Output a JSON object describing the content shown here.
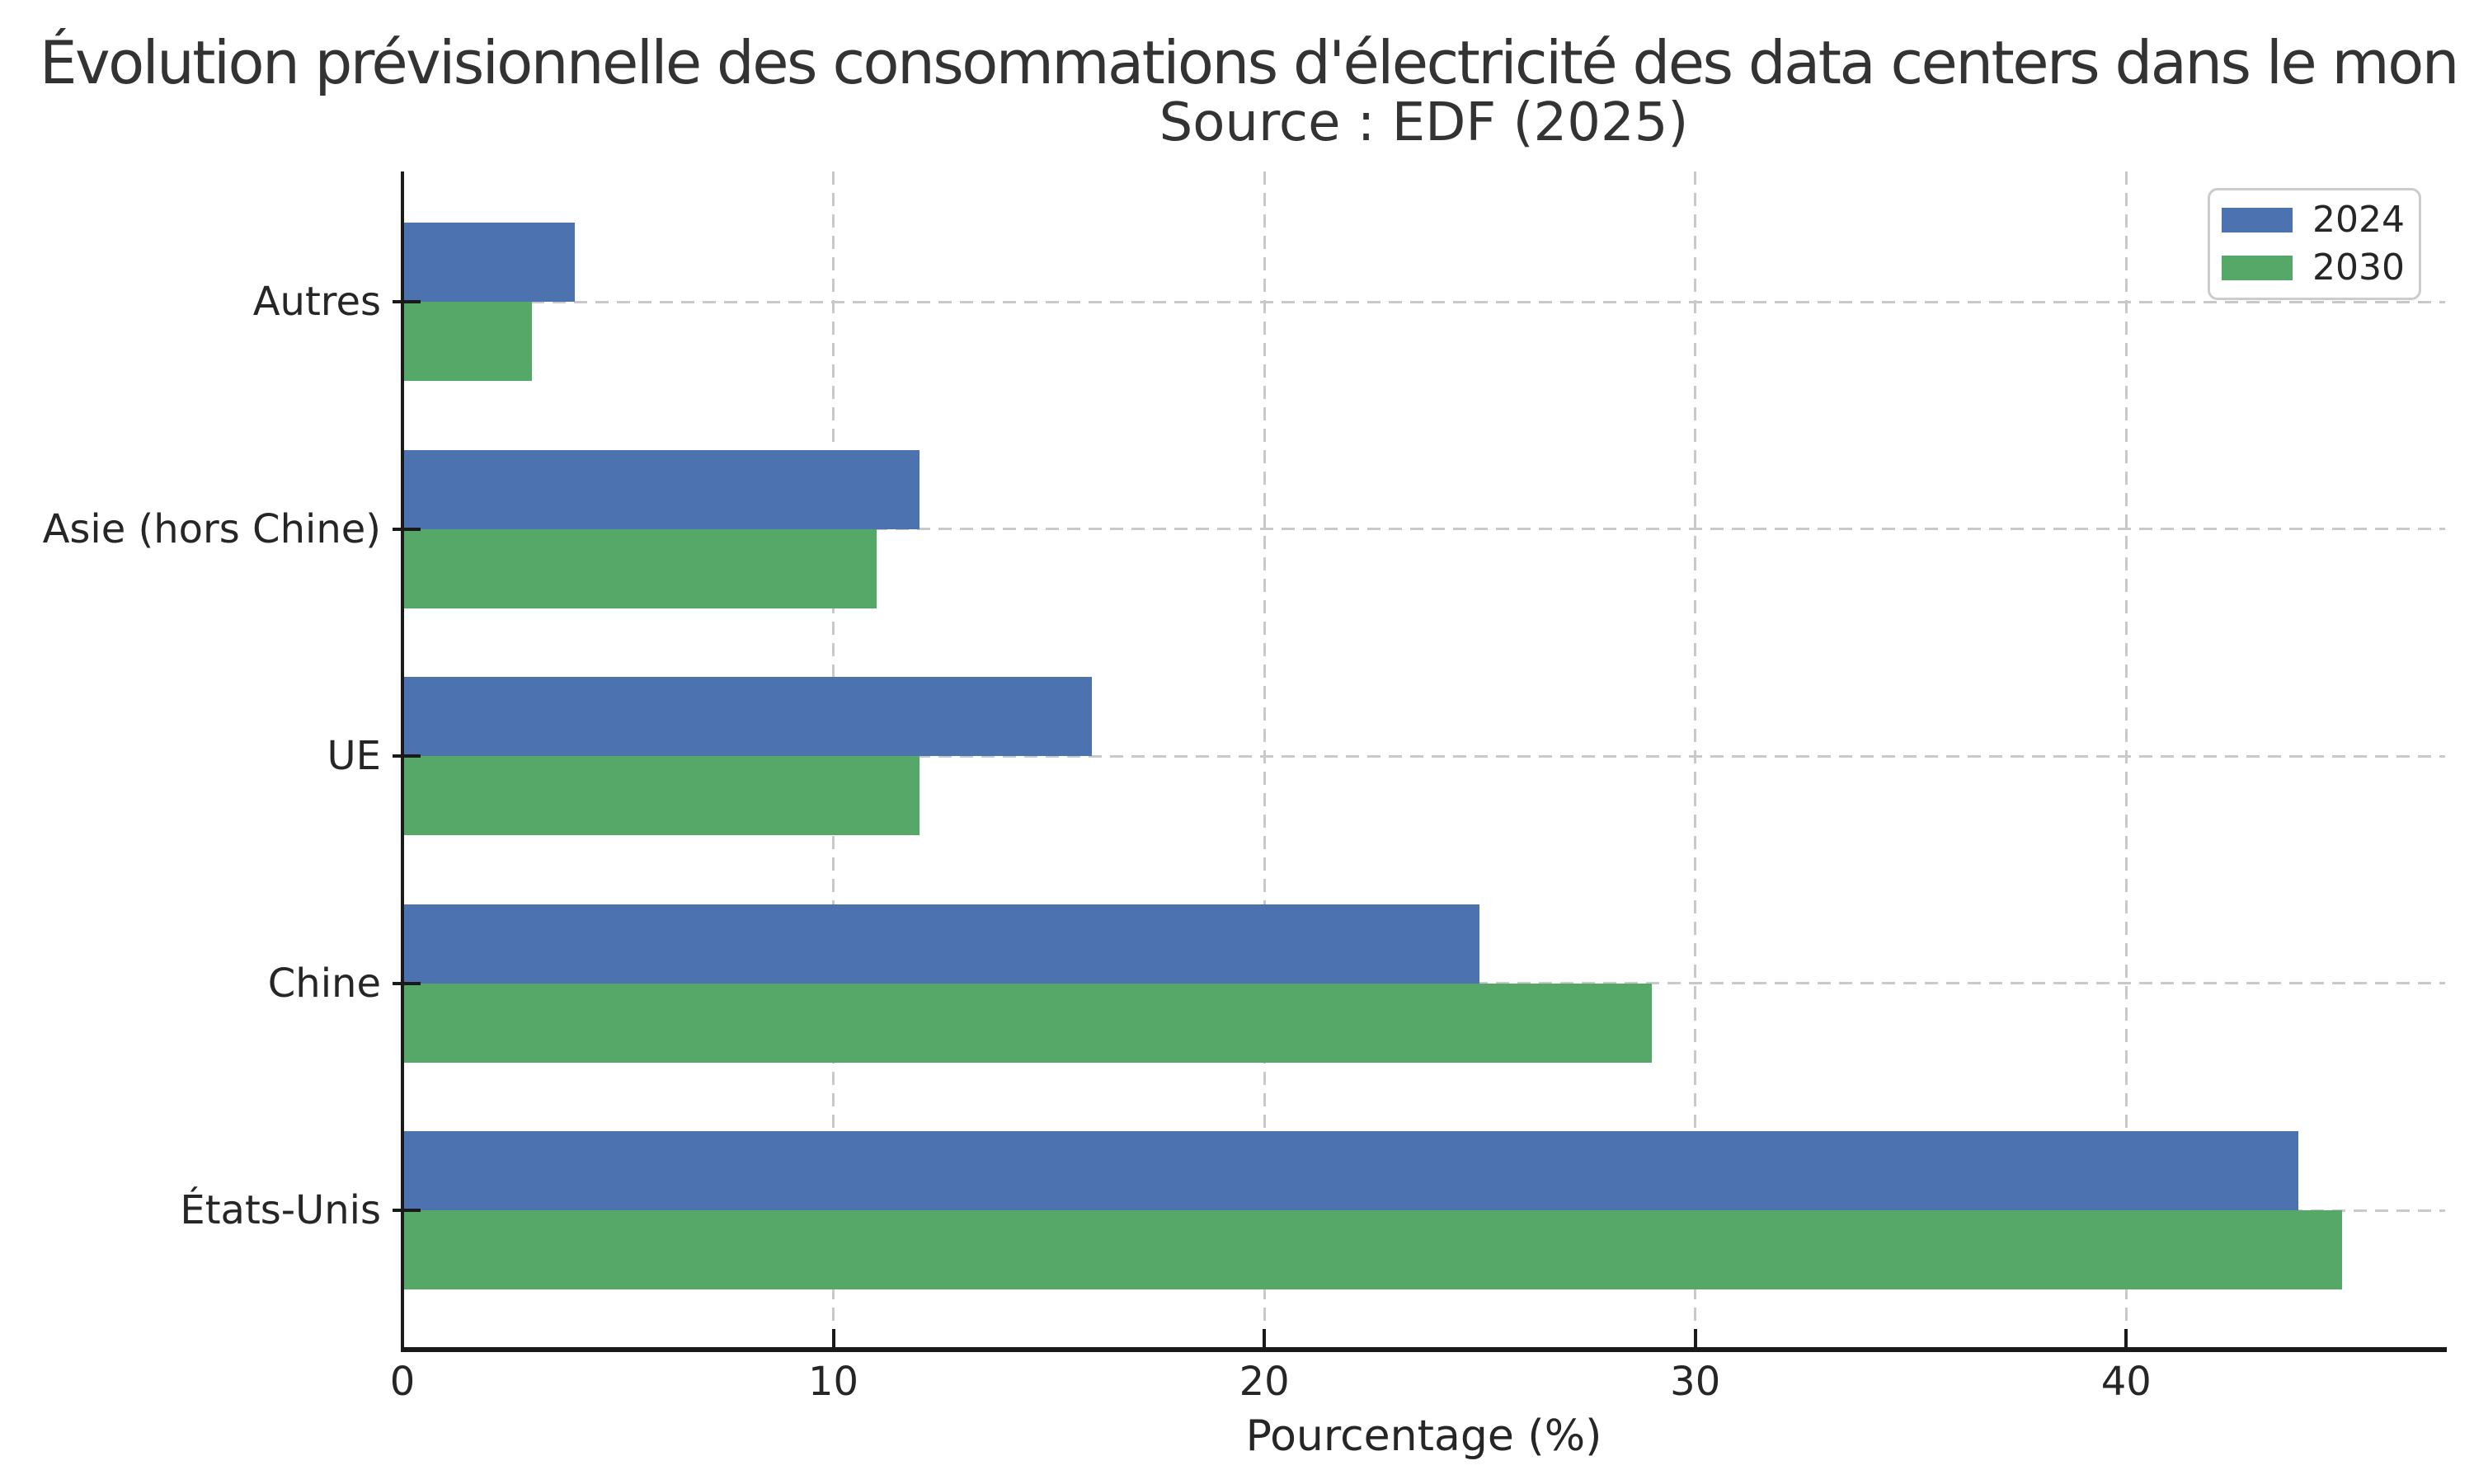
{
  "chart_data": {
    "type": "bar",
    "orientation": "horizontal",
    "title": "Évolution prévisionnelle des consommations d'électricité des data centers dans le mon",
    "title_clipped_at_right_edge": true,
    "subtitle": "Source : EDF (2025)",
    "xlabel": "Pourcentage (%)",
    "ylabel": "",
    "categories_top_to_bottom": [
      "Autres",
      "Asie (hors Chine)",
      "UE",
      "Chine",
      "États-Unis"
    ],
    "series": [
      {
        "name": "2024",
        "color": "#4c72b0",
        "values_top_to_bottom": [
          4,
          12,
          16,
          25,
          44
        ]
      },
      {
        "name": "2030",
        "color": "#55a868",
        "values_top_to_bottom": [
          3,
          11,
          12,
          29,
          45
        ]
      }
    ],
    "x_ticks": [
      0,
      10,
      20,
      30,
      40
    ],
    "xlim": [
      0,
      47.4
    ],
    "grid": "dashed",
    "grid_color": "#c9c9c9",
    "legend_position": "upper-right",
    "legend_entries": [
      "2024",
      "2030"
    ],
    "axis_color": "#1a1a1a",
    "text_color": "#262626",
    "title_color": "#333333",
    "background_color": "#ffffff"
  }
}
